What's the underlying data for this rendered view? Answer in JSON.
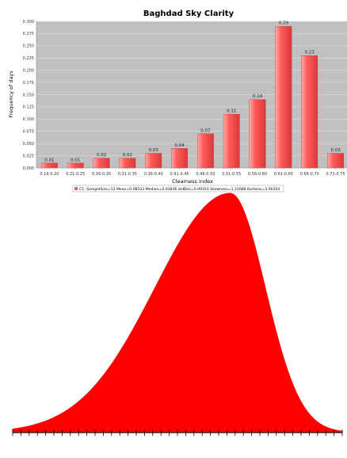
{
  "chart_data": [
    {
      "type": "bar",
      "title": "Baghdad Sky Clarity",
      "xlabel": "Clearness index",
      "ylabel": "Frequency of days",
      "ylim": [
        0,
        0.3
      ],
      "yticks": [
        "0.000",
        "0.025",
        "0.050",
        "0.075",
        "0.100",
        "0.125",
        "0.150",
        "0.175",
        "0.200",
        "0.225",
        "0.250",
        "0.275",
        "0.300"
      ],
      "categories": [
        "0.16-0.20",
        "0.21-0.25",
        "0.26-0.30",
        "0.31-0.35",
        "0.36-0.40",
        "0.41-0.45",
        "0.46-0.50",
        "0.51-0.55",
        "0.56-0.60",
        "0.61-0.65",
        "0.66-0.70",
        "0.71-0.75"
      ],
      "values": [
        0.01,
        0.01,
        0.02,
        0.02,
        0.03,
        0.04,
        0.07,
        0.11,
        0.14,
        0.29,
        0.23,
        0.03
      ],
      "value_labels": [
        "0.01",
        "0.01",
        "0.02",
        "0.02",
        "0.03",
        "0.04",
        "0.07",
        "0.11",
        "0.14",
        "0.29",
        "0.23",
        "0.03"
      ],
      "grid": true,
      "legend_text": "C1: SampleSize=12 Mean=0.08333 Median=0.03836 stdDev=0.09351 Skewness=1.21688 Kurtosis=3.00354",
      "colors": {
        "bar": "#ff5a5a",
        "bar_light": "#ffaaaa",
        "bar_dark": "#d83a3a",
        "plot_bg": "#c0c0c0",
        "grid": "#e4e4e4"
      }
    },
    {
      "type": "area",
      "distribution": "skewed bell curve (left-skewed)",
      "peak_fraction": 0.66,
      "tick_count": 40,
      "colors": {
        "fill": "#ff0000",
        "axis": "#000000"
      }
    }
  ]
}
